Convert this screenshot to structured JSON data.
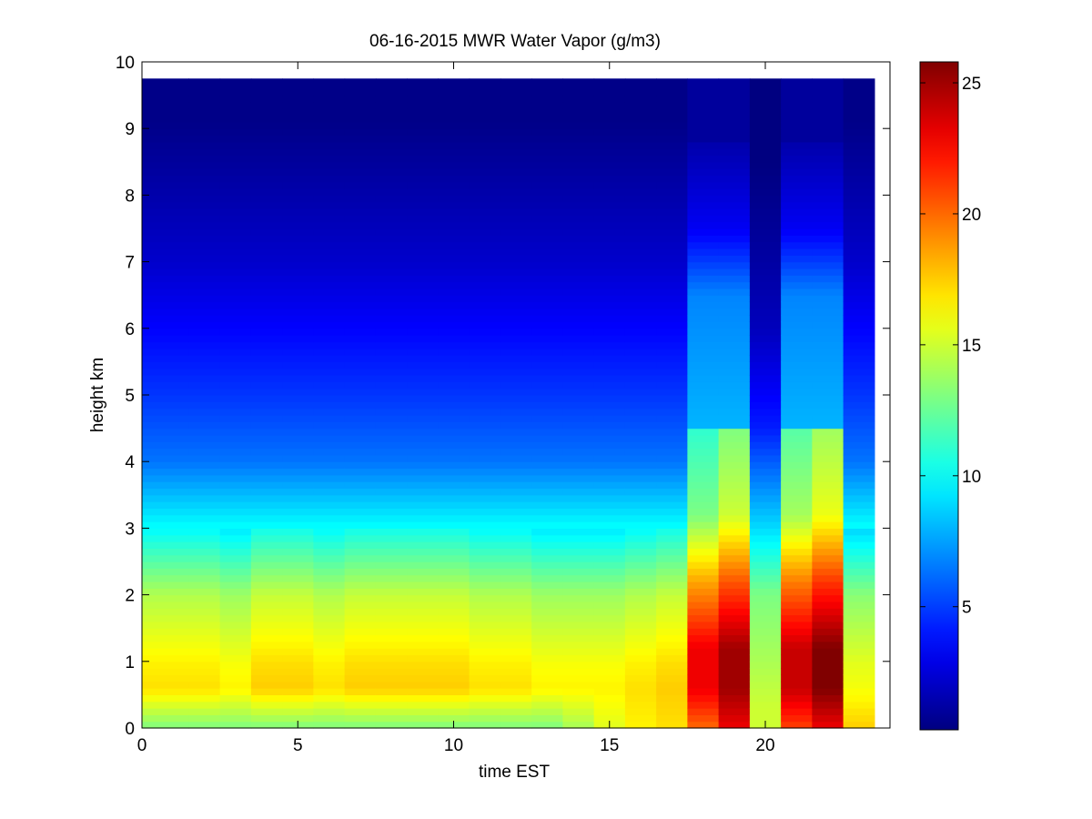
{
  "chart_data": {
    "type": "heatmap",
    "title": "06-16-2015 MWR Water Vapor (g/m3)",
    "xlabel": "time EST",
    "ylabel": "height km",
    "xlim": [
      0,
      24
    ],
    "ylim": [
      0,
      10
    ],
    "x_ticks": [
      0,
      5,
      10,
      15,
      20
    ],
    "y_ticks": [
      0,
      1,
      2,
      3,
      4,
      5,
      6,
      7,
      8,
      9,
      10
    ],
    "colorbar": {
      "colormap": "jet",
      "range": [
        0.3,
        25.8
      ],
      "ticks": [
        5,
        10,
        15,
        20,
        25
      ]
    },
    "columns": [
      {
        "t_start": 0,
        "t_end": 1.5,
        "category": "clear",
        "surface": 13,
        "peak": 17,
        "top": 0.5
      },
      {
        "t_start": 1.5,
        "t_end": 2.5,
        "category": "clear",
        "surface": 13,
        "peak": 17,
        "top": 0.5
      },
      {
        "t_start": 2.5,
        "t_end": 3.5,
        "category": "clear",
        "surface": 13,
        "peak": 16.5,
        "top": 0.5
      },
      {
        "t_start": 3.5,
        "t_end": 4.5,
        "category": "clear",
        "surface": 13,
        "peak": 17.5,
        "top": 0.5
      },
      {
        "t_start": 4.5,
        "t_end": 5.5,
        "category": "clear",
        "surface": 13,
        "peak": 17.5,
        "top": 0.5
      },
      {
        "t_start": 5.5,
        "t_end": 6.5,
        "category": "clear",
        "surface": 13,
        "peak": 17,
        "top": 0.5
      },
      {
        "t_start": 6.5,
        "t_end": 7.5,
        "category": "clear",
        "surface": 13,
        "peak": 17.5,
        "top": 0.5
      },
      {
        "t_start": 7.5,
        "t_end": 8.5,
        "category": "clear",
        "surface": 13,
        "peak": 17.5,
        "top": 0.5
      },
      {
        "t_start": 8.5,
        "t_end": 9.5,
        "category": "clear",
        "surface": 13,
        "peak": 17.5,
        "top": 0.5
      },
      {
        "t_start": 9.5,
        "t_end": 10.5,
        "category": "clear",
        "surface": 13,
        "peak": 17.5,
        "top": 0.5
      },
      {
        "t_start": 10.5,
        "t_end": 11.5,
        "category": "clear",
        "surface": 13,
        "peak": 17,
        "top": 0.5
      },
      {
        "t_start": 11.5,
        "t_end": 12.5,
        "category": "clear",
        "surface": 13,
        "peak": 17,
        "top": 0.5
      },
      {
        "t_start": 12.5,
        "t_end": 13.5,
        "category": "clear",
        "surface": 13,
        "peak": 16.5,
        "top": 0.5
      },
      {
        "t_start": 13.5,
        "t_end": 14.5,
        "category": "clear",
        "surface": 14,
        "peak": 16.5,
        "top": 0.5
      },
      {
        "t_start": 14.5,
        "t_end": 15.5,
        "category": "clear",
        "surface": 15.5,
        "peak": 16.5,
        "top": 0.5
      },
      {
        "t_start": 15.5,
        "t_end": 16.5,
        "category": "clear",
        "surface": 16.5,
        "peak": 17,
        "top": 0.5
      },
      {
        "t_start": 16.5,
        "t_end": 17.5,
        "category": "clear",
        "surface": 17,
        "peak": 17.5,
        "top": 0.5
      },
      {
        "t_start": 17.5,
        "t_end": 18.5,
        "category": "cloud",
        "surface": 20,
        "peak": 23,
        "top": 0.8
      },
      {
        "t_start": 18.5,
        "t_end": 19.5,
        "category": "cloud",
        "surface": 23,
        "peak": 25,
        "top": 1.0
      },
      {
        "t_start": 19.5,
        "t_end": 20.5,
        "category": "dry",
        "surface": 15,
        "peak": 15,
        "top": 0.3
      },
      {
        "t_start": 20.5,
        "t_end": 21.5,
        "category": "cloud",
        "surface": 21,
        "peak": 24,
        "top": 0.8
      },
      {
        "t_start": 21.5,
        "t_end": 22.5,
        "category": "cloud",
        "surface": 23,
        "peak": 25.8,
        "top": 0.6
      },
      {
        "t_start": 22.5,
        "t_end": 23.5,
        "category": "clear",
        "surface": 17.5,
        "peak": 16,
        "top": 0.5
      }
    ],
    "data_top_km": 9.75,
    "colors": {
      "background": "#ffffff",
      "axes": "#000000",
      "missing": "#ffffff"
    }
  }
}
